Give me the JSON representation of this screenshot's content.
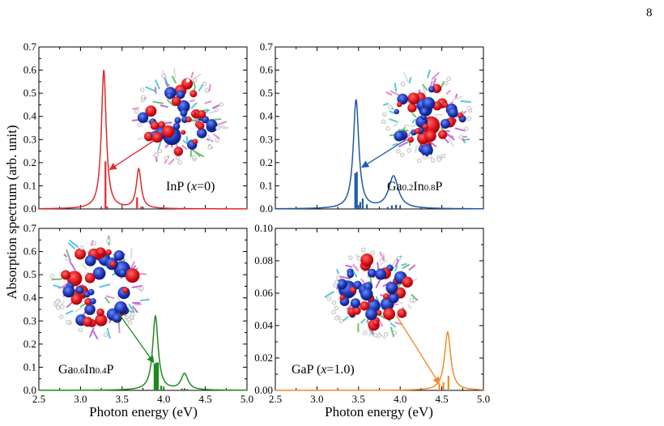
{
  "page": {
    "number": "8"
  },
  "colors": {
    "red": "#e0282c",
    "blue": "#1f5aa8",
    "green": "#1e8a1e",
    "orange": "#f08a28"
  },
  "axes": {
    "xlabel": "Photon energy (eV)",
    "ylabel": "Absorption spectrum (arb. unit)"
  },
  "chart_data": [
    {
      "type": "line",
      "panel": "top-left",
      "label": {
        "parts": [
          {
            "t": "InP ("
          },
          {
            "t": "x",
            "italic": true
          },
          {
            "t": "=0)"
          }
        ]
      },
      "color": "#e0282c",
      "xlim": [
        2.5,
        5.0
      ],
      "ylim": [
        0.0,
        0.7
      ],
      "xticks": [
        2.5,
        3.0,
        3.5,
        4.0,
        4.5,
        5.0
      ],
      "yticks": [
        0.0,
        0.1,
        0.2,
        0.3,
        0.4,
        0.5,
        0.6,
        0.7
      ],
      "ytick_labels": [
        "0.0",
        "0.1",
        "0.2",
        "0.3",
        "0.4",
        "0.5",
        "0.6",
        "0.7"
      ],
      "show_xtick_labels": false,
      "show_ytick_labels": true,
      "peaks": [
        {
          "x": 3.28,
          "h": 0.6,
          "w": 0.035
        },
        {
          "x": 3.7,
          "h": 0.17,
          "w": 0.035
        }
      ],
      "sticks": [
        {
          "x": 3.3,
          "y": 0.205
        },
        {
          "x": 3.32,
          "y": 0.01
        },
        {
          "x": 3.68,
          "y": 0.05
        },
        {
          "x": 3.73,
          "y": 0.01
        }
      ],
      "inset": {
        "type": "molecule-image",
        "arrow_tip": {
          "x": 3.35,
          "y": 0.17
        }
      }
    },
    {
      "type": "line",
      "panel": "top-right",
      "label": {
        "parts": [
          {
            "t": "Ga"
          },
          {
            "t": "0.2",
            "sub": true
          },
          {
            "t": "In"
          },
          {
            "t": "0.8",
            "sub": true
          },
          {
            "t": "P"
          }
        ]
      },
      "color": "#1f5aa8",
      "xlim": [
        2.5,
        5.0
      ],
      "ylim": [
        0.0,
        0.7
      ],
      "xticks": [
        2.5,
        3.0,
        3.5,
        4.0,
        4.5,
        5.0
      ],
      "yticks": [
        0.0,
        0.1,
        0.2,
        0.3,
        0.4,
        0.5,
        0.6,
        0.7
      ],
      "ytick_labels": [
        "0.0",
        "0.1",
        "0.2",
        "0.3",
        "0.4",
        "0.5",
        "0.6",
        "0.7"
      ],
      "show_xtick_labels": false,
      "show_ytick_labels": true,
      "peaks": [
        {
          "x": 3.47,
          "h": 0.47,
          "w": 0.04
        },
        {
          "x": 3.92,
          "h": 0.14,
          "w": 0.07
        }
      ],
      "sticks": [
        {
          "x": 3.46,
          "y": 0.155
        },
        {
          "x": 3.48,
          "y": 0.16
        },
        {
          "x": 3.52,
          "y": 0.03
        },
        {
          "x": 3.55,
          "y": 0.045
        },
        {
          "x": 3.6,
          "y": 0.02
        },
        {
          "x": 3.85,
          "y": 0.008
        },
        {
          "x": 3.9,
          "y": 0.015
        },
        {
          "x": 3.95,
          "y": 0.018
        },
        {
          "x": 4.0,
          "y": 0.01
        }
      ],
      "inset": {
        "type": "molecule-image",
        "arrow_tip": {
          "x": 3.54,
          "y": 0.18
        }
      }
    },
    {
      "type": "line",
      "panel": "bottom-left",
      "label": {
        "parts": [
          {
            "t": "Ga"
          },
          {
            "t": "0.6",
            "sub": true
          },
          {
            "t": "In"
          },
          {
            "t": "0.4",
            "sub": true
          },
          {
            "t": "P"
          }
        ]
      },
      "color": "#1e8a1e",
      "xlim": [
        2.5,
        5.0
      ],
      "ylim": [
        0.0,
        0.7
      ],
      "xticks": [
        2.5,
        3.0,
        3.5,
        4.0,
        4.5,
        5.0
      ],
      "xtick_labels": [
        "2.5",
        "3.0",
        "3.5",
        "4.0",
        "4.5",
        "5.0"
      ],
      "yticks": [
        0.0,
        0.1,
        0.2,
        0.3,
        0.4,
        0.5,
        0.6,
        0.7
      ],
      "ytick_labels": [
        "0.0",
        "0.1",
        "0.2",
        "0.3",
        "0.4",
        "0.5",
        "0.6",
        "0.7"
      ],
      "show_xtick_labels": true,
      "show_ytick_labels": true,
      "peaks": [
        {
          "x": 3.9,
          "h": 0.32,
          "w": 0.04
        },
        {
          "x": 4.25,
          "h": 0.07,
          "w": 0.05
        }
      ],
      "sticks": [
        {
          "x": 3.89,
          "y": 0.115
        },
        {
          "x": 3.91,
          "y": 0.12
        },
        {
          "x": 3.93,
          "y": 0.12
        },
        {
          "x": 3.97,
          "y": 0.02
        },
        {
          "x": 4.0,
          "y": 0.01
        },
        {
          "x": 4.22,
          "y": 0.008
        },
        {
          "x": 4.28,
          "y": 0.006
        }
      ],
      "inset": {
        "type": "molecule-image",
        "arrow_tip": {
          "x": 3.88,
          "y": 0.12
        }
      }
    },
    {
      "type": "line",
      "panel": "bottom-right",
      "label": {
        "parts": [
          {
            "t": "GaP ("
          },
          {
            "t": "x",
            "italic": true
          },
          {
            "t": "=1.0)"
          }
        ]
      },
      "color": "#f08a28",
      "xlim": [
        2.5,
        5.0
      ],
      "ylim": [
        0.0,
        0.1
      ],
      "xticks": [
        2.5,
        3.0,
        3.5,
        4.0,
        4.5,
        5.0
      ],
      "xtick_labels": [
        "2.5",
        "3.0",
        "3.5",
        "4.0",
        "4.5",
        "5.0"
      ],
      "yticks": [
        0.0,
        0.02,
        0.04,
        0.06,
        0.08,
        0.1
      ],
      "ytick_labels": [
        "0.00",
        "0.02",
        "0.04",
        "0.06",
        "0.08",
        "0.10"
      ],
      "show_xtick_labels": true,
      "show_ytick_labels": true,
      "peaks": [
        {
          "x": 4.57,
          "h": 0.036,
          "w": 0.045
        }
      ],
      "sticks": [
        {
          "x": 4.47,
          "y": 0.004
        },
        {
          "x": 4.52,
          "y": 0.005
        },
        {
          "x": 4.58,
          "y": 0.009
        }
      ],
      "inset": {
        "type": "molecule-image",
        "arrow_tip": {
          "x": 4.47,
          "y": 0.004
        }
      }
    }
  ]
}
